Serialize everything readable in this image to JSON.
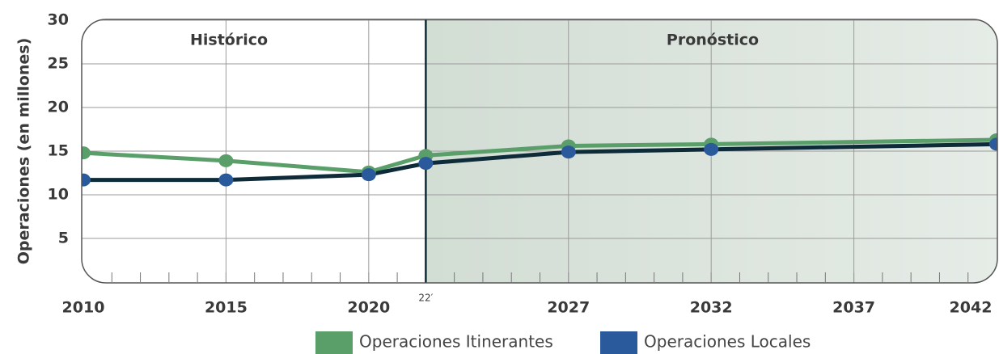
{
  "chart_data": {
    "type": "line",
    "y_label": "Operaciones (en millones)",
    "annotations": [
      "Histórico",
      "Pronóstico"
    ],
    "x": [
      2010,
      2015,
      2020,
      2022,
      2027,
      2032,
      2042
    ],
    "series": [
      {
        "name": "Operaciones Itinerantes",
        "color": "#5a9e6a",
        "line_color": "#5a9e6a",
        "values": [
          14.8,
          13.9,
          12.6,
          14.5,
          15.6,
          15.8,
          16.3
        ]
      },
      {
        "name": "Operaciones Locales",
        "color": "#2a5a9c",
        "line_color": "#0e2b3a",
        "values": [
          11.7,
          11.7,
          12.3,
          13.6,
          14.9,
          15.2,
          15.8
        ]
      }
    ],
    "forecast_region": [
      2022,
      2042
    ],
    "xlim": [
      2010,
      2042
    ],
    "xticks": [
      2010,
      2015,
      2020,
      {
        "value": 2022,
        "label": "22′"
      },
      2027,
      2032,
      2037,
      2042
    ],
    "ylim": [
      0,
      30
    ],
    "yticks": [
      5,
      10,
      15,
      20,
      25,
      30
    ],
    "grid": true
  }
}
